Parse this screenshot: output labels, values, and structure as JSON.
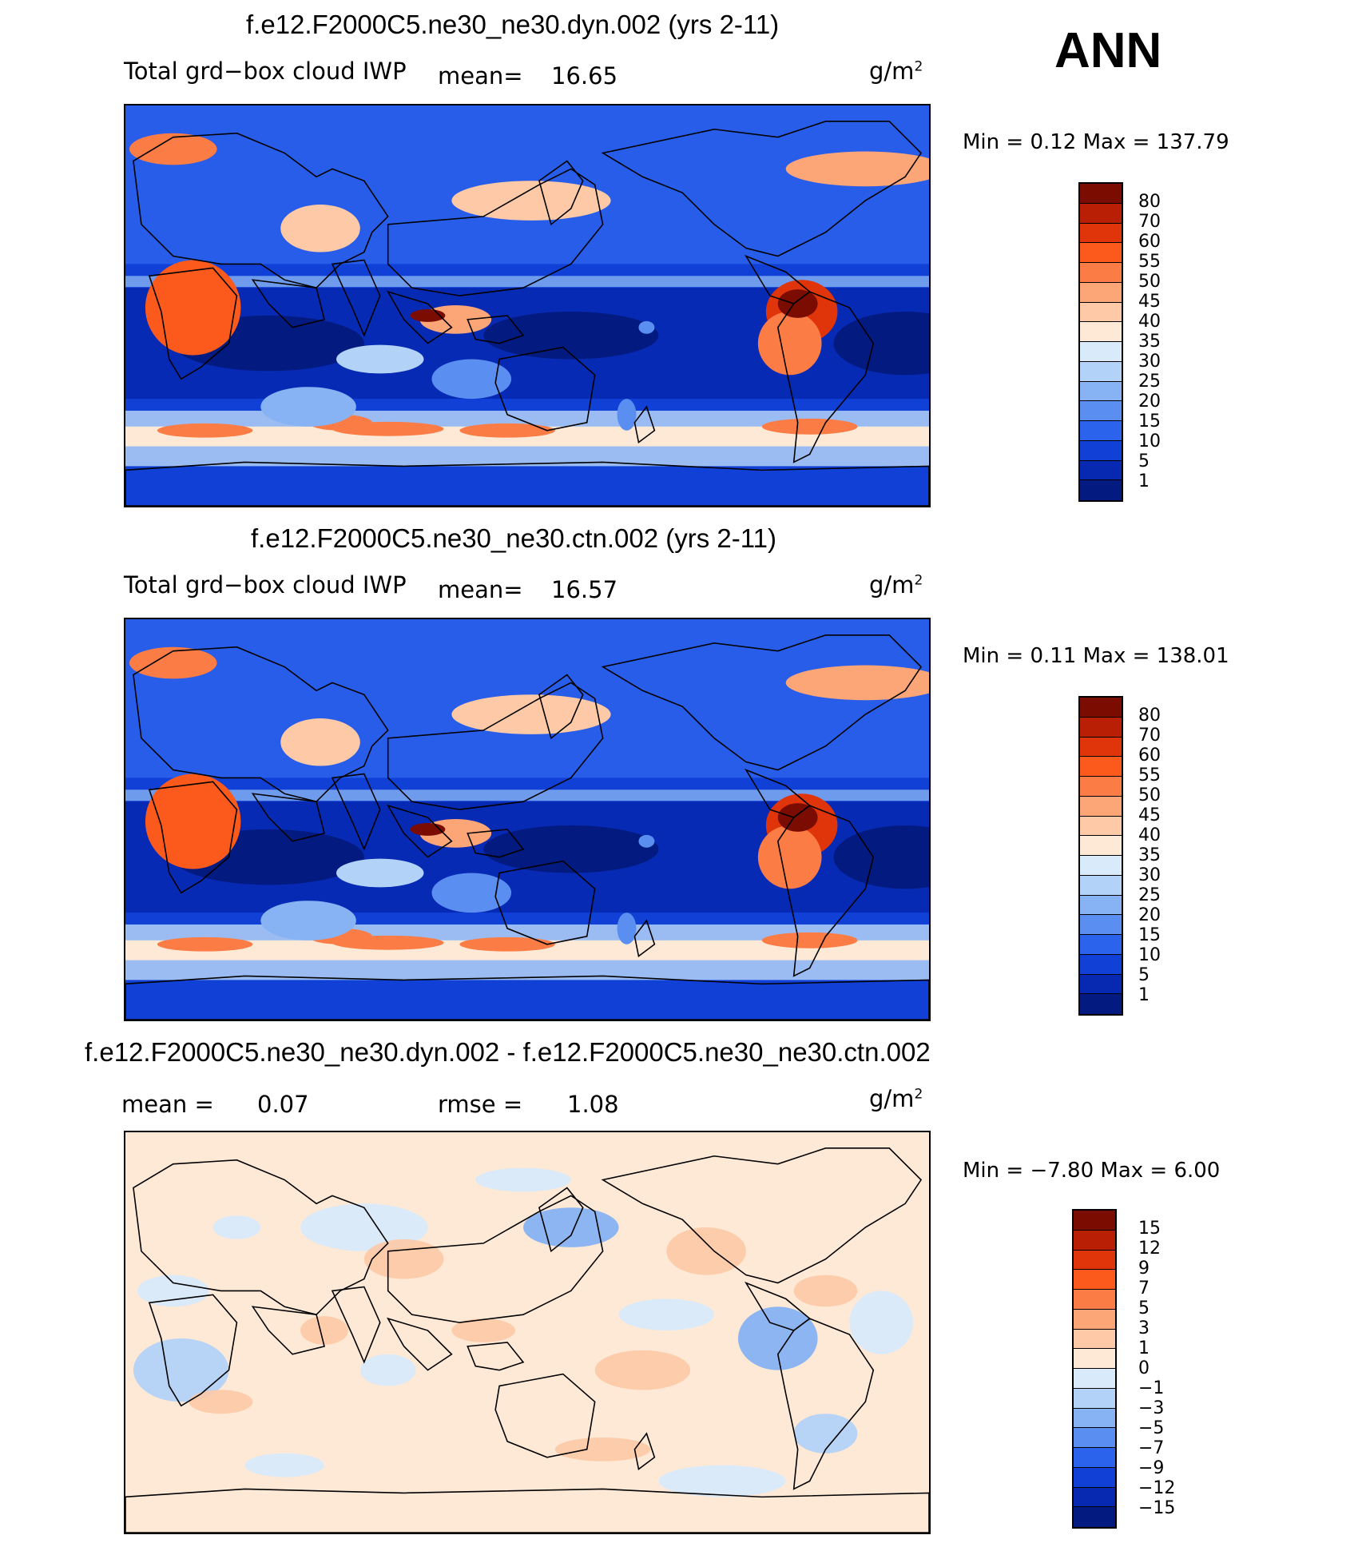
{
  "season": "ANN",
  "panels": [
    {
      "title": "f.e12.F2000C5.ne30_ne30.dyn.002 (yrs 2-11)",
      "variable": "Total grd−box cloud IWP",
      "mean_label": "mean=",
      "mean_value": "16.65",
      "units": "g/m",
      "units_exp": "2",
      "minmax": "Min =    0.12  Max  =  137.79",
      "field": "mean"
    },
    {
      "title": "f.e12.F2000C5.ne30_ne30.ctn.002 (yrs 2-11)",
      "variable": "Total grd−box cloud IWP",
      "mean_label": "mean=",
      "mean_value": "16.57",
      "units": "g/m",
      "units_exp": "2",
      "minmax": "Min =    0.11  Max  =  138.01",
      "field": "mean"
    },
    {
      "title": "f.e12.F2000C5.ne30_ne30.dyn.002 - f.e12.F2000C5.ne30_ne30.ctn.002",
      "mean_label": "mean =",
      "mean_value": "0.07",
      "rmse_label": "rmse =",
      "rmse_value": "1.08",
      "units": "g/m",
      "units_exp": "2",
      "minmax": "Min =   −7.80  Max  =     6.00",
      "field": "diff"
    }
  ],
  "colorbar_mean": {
    "levels": [
      "80",
      "70",
      "60",
      "55",
      "50",
      "45",
      "40",
      "35",
      "30",
      "25",
      "20",
      "15",
      "10",
      "5",
      "1"
    ],
    "colors": [
      "#7a0c02",
      "#b81f04",
      "#e0340a",
      "#fb5a1c",
      "#fc7c45",
      "#fca577",
      "#fdc9a6",
      "#fde9d6",
      "#d9eafb",
      "#b3d2f7",
      "#87b2f3",
      "#5a8ef0",
      "#2b63ec",
      "#1040d6",
      "#0728b0",
      "#031a80"
    ]
  },
  "colorbar_diff": {
    "levels": [
      "15",
      "12",
      "9",
      "7",
      "5",
      "3",
      "1",
      "0",
      "−1",
      "−3",
      "−5",
      "−7",
      "−9",
      "−12",
      "−15"
    ],
    "colors": [
      "#7a0c02",
      "#b81f04",
      "#e0340a",
      "#fb5a1c",
      "#fc7c45",
      "#fca577",
      "#fdc9a6",
      "#fde9d6",
      "#d9eafb",
      "#b3d2f7",
      "#87b2f3",
      "#5a8ef0",
      "#2b63ec",
      "#1040d6",
      "#0728b0",
      "#031a80"
    ]
  }
}
